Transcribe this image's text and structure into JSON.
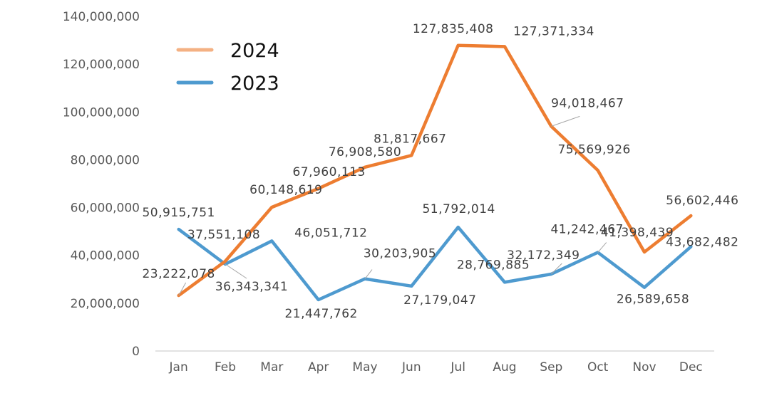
{
  "chart_data": {
    "type": "line",
    "categories": [
      "Jan",
      "Feb",
      "Mar",
      "Apr",
      "May",
      "Jun",
      "Jul",
      "Aug",
      "Sep",
      "Oct",
      "Nov",
      "Dec"
    ],
    "ylim": [
      0,
      140000000
    ],
    "yticks": [
      0,
      20000000,
      40000000,
      60000000,
      80000000,
      100000000,
      120000000,
      140000000
    ],
    "ytick_labels": [
      "0",
      "20,000,000",
      "40,000,000",
      "60,000,000",
      "80,000,000",
      "100,000,000",
      "120,000,000",
      "140,000,000"
    ],
    "grid": false,
    "legend_position": "top-left",
    "series": [
      {
        "name": "2024",
        "color": "#ED7D31",
        "legend_color": "#F4B183",
        "values": [
          23222078,
          37551108,
          60148619,
          67960113,
          76908580,
          81817667,
          127835408,
          127371334,
          94018467,
          75569926,
          41398439,
          56602446
        ],
        "labels": [
          "23,222,078",
          "37,551,108",
          "60,148,619",
          "67,960,113",
          "76,908,580",
          "81,817,667",
          "127,835,408",
          "127,371,334",
          "94,018,467",
          "75,569,926",
          "41,398,439",
          "56,602,446"
        ]
      },
      {
        "name": "2023",
        "color": "#4E9ACF",
        "legend_color": "#4E9ACF",
        "values": [
          50915751,
          36343341,
          46051712,
          21447762,
          30203905,
          27179047,
          51792014,
          28769885,
          32172349,
          41242467,
          26589658,
          43682482
        ],
        "labels": [
          "50,915,751",
          "36,343,341",
          "46,051,712",
          "21,447,762",
          "30,203,905",
          "27,179,047",
          "51,792,014",
          "28,769,885",
          "32,172,349",
          "41,242,467",
          "26,589,658",
          "43,682,482"
        ]
      }
    ]
  }
}
